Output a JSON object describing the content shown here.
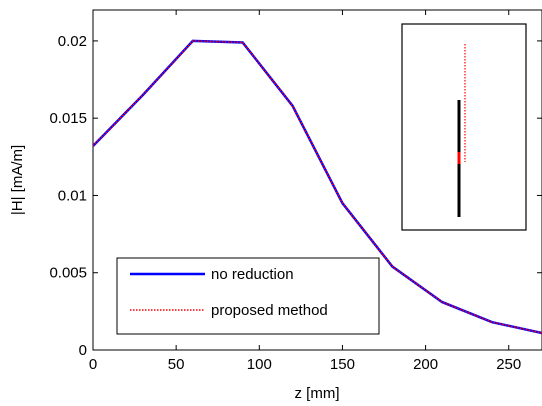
{
  "chart_data": {
    "type": "line",
    "xlabel": "z [mm]",
    "ylabel": "|H| [mA/m]",
    "xlim": [
      0,
      270
    ],
    "ylim": [
      0,
      0.022
    ],
    "xticks": [
      "0",
      "50",
      "100",
      "150",
      "200",
      "250"
    ],
    "xtick_values": [
      0,
      50,
      100,
      150,
      200,
      250
    ],
    "yticks": [
      "0",
      "0.005",
      "0.01",
      "0.015",
      "0.02"
    ],
    "ytick_values": [
      0,
      0.005,
      0.01,
      0.015,
      0.02
    ],
    "grid": false,
    "legend_position": "lower-left",
    "series": [
      {
        "name": "no reduction",
        "color": "#0000ff",
        "style": "solid",
        "x": [
          0,
          30,
          60,
          90,
          120,
          150,
          180,
          210,
          240,
          270
        ],
        "y": [
          0.0132,
          0.0165,
          0.02,
          0.0199,
          0.0158,
          0.0095,
          0.0054,
          0.0031,
          0.0018,
          0.0011
        ]
      },
      {
        "name": "proposed method",
        "color": "#ff0000",
        "style": "dotted",
        "x": [
          0,
          30,
          60,
          90,
          120,
          150,
          180,
          210,
          240,
          270
        ],
        "y": [
          0.0132,
          0.0165,
          0.02,
          0.0199,
          0.0158,
          0.0095,
          0.0054,
          0.0031,
          0.0018,
          0.0011
        ]
      }
    ],
    "inset": {
      "description_colors": {
        "black_conductor": "#000000",
        "red_segment": "#ff0000",
        "red_dotted_line": "#ff0000"
      }
    }
  }
}
